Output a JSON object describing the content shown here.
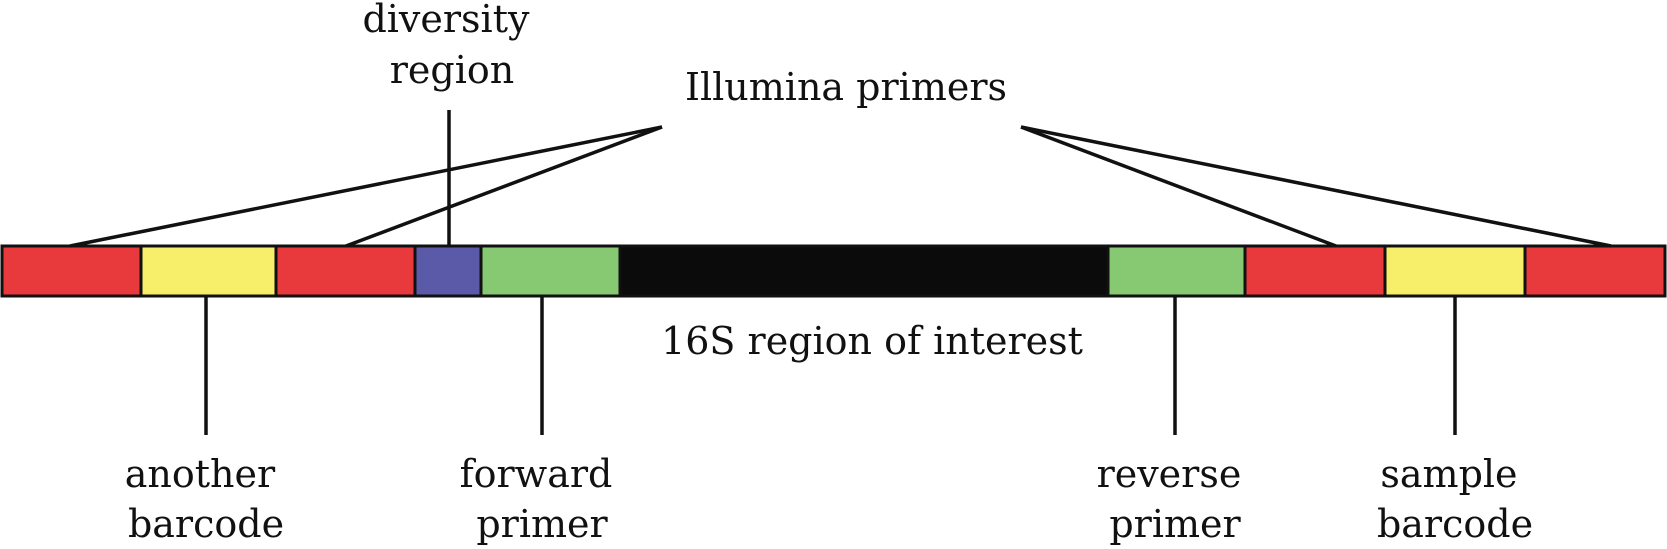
{
  "labels": {
    "diversity_region": [
      "diversity",
      "region"
    ],
    "illumina_primers": "Illumina primers",
    "region_of_interest": "16S region of interest",
    "another_barcode": [
      "another",
      "barcode"
    ],
    "forward_primer": [
      "forward",
      "primer"
    ],
    "reverse_primer": [
      "reverse",
      "primer"
    ],
    "sample_barcode": [
      "sample",
      "barcode"
    ]
  },
  "segments": [
    {
      "part": "illumina-primer",
      "color": "#e8393c"
    },
    {
      "part": "another-barcode",
      "color": "#f7ee6a"
    },
    {
      "part": "illumina-primer",
      "color": "#e8393c"
    },
    {
      "part": "diversity-region",
      "color": "#5a5aa8"
    },
    {
      "part": "forward-primer",
      "color": "#87c873"
    },
    {
      "part": "16s-region",
      "color": "#0b0b0c"
    },
    {
      "part": "reverse-primer",
      "color": "#87c873"
    },
    {
      "part": "illumina-primer",
      "color": "#e8393c"
    },
    {
      "part": "sample-barcode",
      "color": "#f7ee6a"
    },
    {
      "part": "illumina-primer",
      "color": "#e8393c"
    }
  ]
}
